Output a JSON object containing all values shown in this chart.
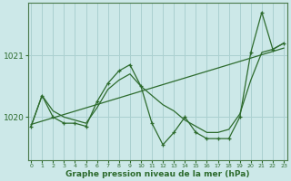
{
  "xlabel": "Graphe pression niveau de la mer (hPa)",
  "background_color": "#cce8e8",
  "grid_color": "#aad0d0",
  "line_color": "#2d6b2d",
  "yticks": [
    1020,
    1021
  ],
  "ylim": [
    1019.3,
    1021.85
  ],
  "xlim": [
    -0.3,
    23.3
  ],
  "hours": [
    0,
    1,
    2,
    3,
    4,
    5,
    6,
    7,
    8,
    9,
    10,
    11,
    12,
    13,
    14,
    15,
    16,
    17,
    18,
    19,
    20,
    21,
    22,
    23
  ],
  "pressure_main": [
    1019.85,
    1020.35,
    1020.0,
    1019.9,
    1019.9,
    1019.85,
    1020.25,
    1020.55,
    1020.75,
    1020.85,
    1020.5,
    1019.9,
    1019.55,
    1019.75,
    1020.0,
    1019.75,
    1019.65,
    1019.65,
    1019.65,
    1020.0,
    1021.05,
    1021.7,
    1021.1,
    1021.2
  ],
  "pressure_smooth": [
    1019.85,
    1020.35,
    1020.1,
    1020.0,
    1019.95,
    1019.9,
    1020.15,
    1020.45,
    1020.6,
    1020.7,
    1020.5,
    1020.35,
    1020.2,
    1020.1,
    1019.95,
    1019.85,
    1019.75,
    1019.75,
    1019.8,
    1020.05,
    1020.6,
    1021.05,
    1021.1,
    1021.2
  ],
  "trend_x": [
    0,
    23
  ],
  "trend_y": [
    1019.88,
    1021.12
  ]
}
